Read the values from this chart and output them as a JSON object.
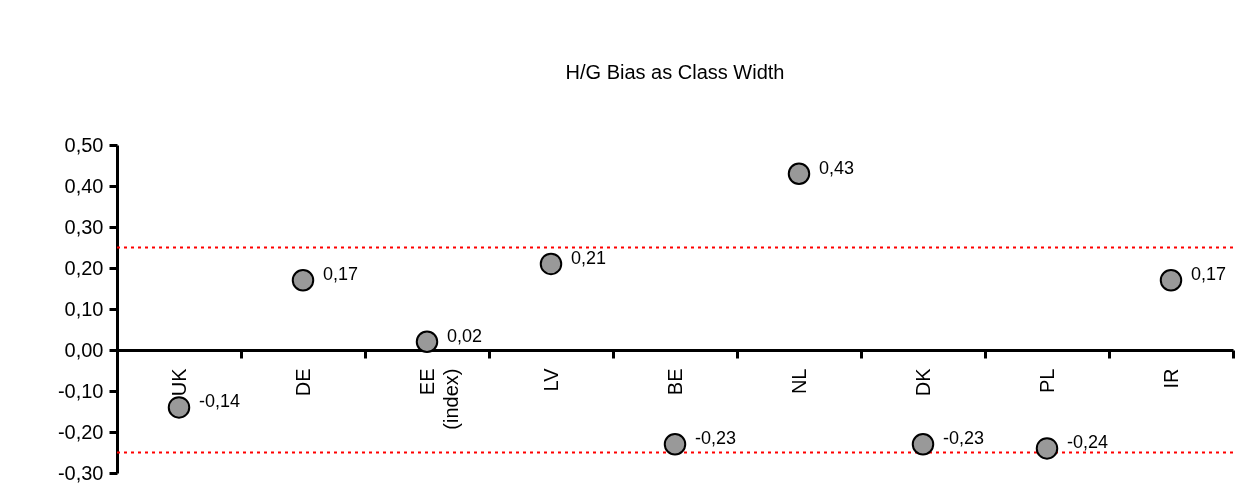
{
  "chart_data": {
    "type": "scatter",
    "title": "H/G Bias as Class Width",
    "categories": [
      "UK",
      "DE",
      "EE\n(index)",
      "LV",
      "BE",
      "NL",
      "DK",
      "PL",
      "IR"
    ],
    "series": [
      {
        "color": "#999999",
        "values": [
          -0.14,
          0.17,
          0.02,
          0.21,
          -0.23,
          0.43,
          -0.23,
          -0.24,
          0.17
        ],
        "value_labels": [
          "-0,14",
          "0,17",
          "0,02",
          "0,21",
          "-0,23",
          "0,43",
          "-0,23",
          "-0,24",
          "0,17"
        ]
      }
    ],
    "ylim": [
      -0.3,
      0.5
    ],
    "yticks": [
      {
        "value": -0.3,
        "label": "-0,30"
      },
      {
        "value": -0.2,
        "label": "-0,20"
      },
      {
        "value": -0.1,
        "label": "-0,10"
      },
      {
        "value": 0,
        "label": "0,00"
      },
      {
        "value": 0.1,
        "label": "0,10"
      },
      {
        "value": 0.2,
        "label": "0,20"
      },
      {
        "value": 0.3,
        "label": "0,30"
      },
      {
        "value": 0.4,
        "label": "0,40"
      },
      {
        "value": 0.5,
        "label": "0,50"
      }
    ],
    "ref_lines": [
      {
        "axis": "y",
        "value": 0.25,
        "color": "#ff0000",
        "line_style": "dotted"
      },
      {
        "axis": "y",
        "value": -0.25,
        "color": "#ff0000",
        "line_style": "dotted"
      }
    ],
    "marker": "circle",
    "grid": false
  }
}
